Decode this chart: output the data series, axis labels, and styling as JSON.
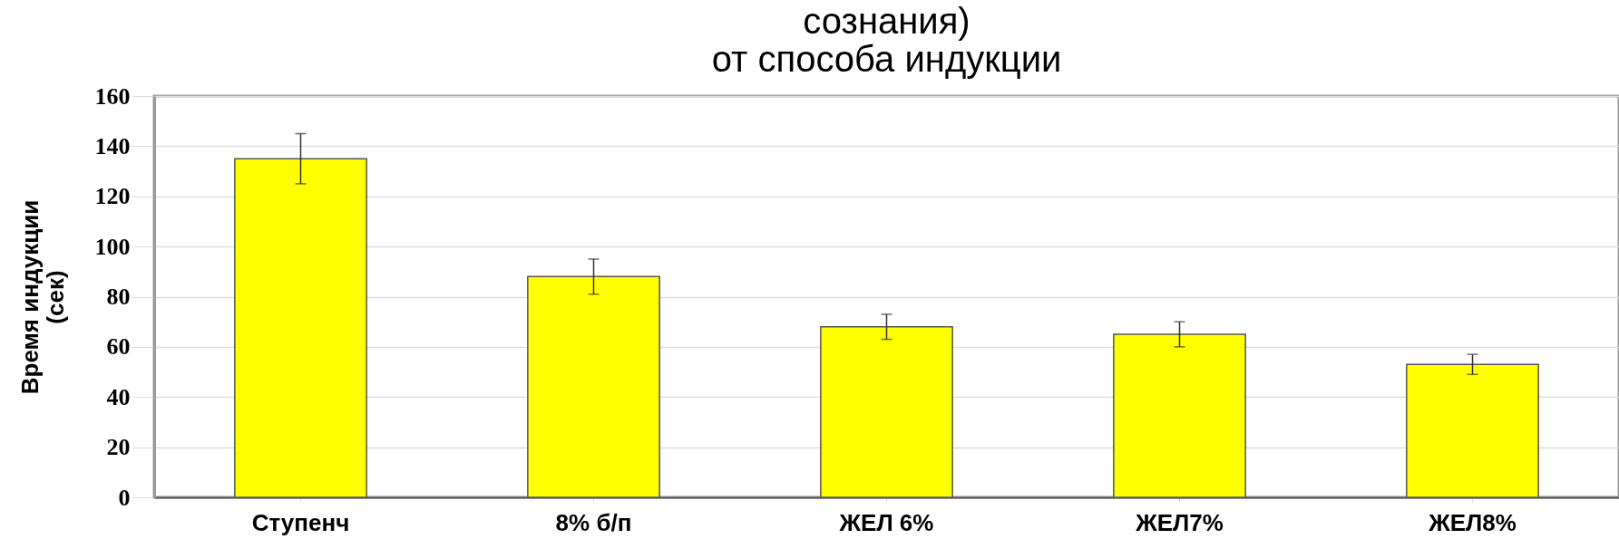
{
  "chart_data": {
    "type": "bar",
    "title": "сознания)\nот способа индукции",
    "ylabel": "Время индукции\n(сек)",
    "categories": [
      "Ступенч",
      "8% б/п",
      "ЖЕЛ 6%",
      "ЖЕЛ7%",
      "ЖЕЛ8%"
    ],
    "values": [
      135,
      88,
      68,
      65,
      53
    ],
    "errors": [
      10,
      7,
      5,
      5,
      4
    ],
    "color": "#ffff00",
    "ylim": [
      0,
      160
    ],
    "yticks": [
      0,
      20,
      40,
      60,
      80,
      100,
      120,
      140,
      160
    ],
    "grid": "y"
  }
}
